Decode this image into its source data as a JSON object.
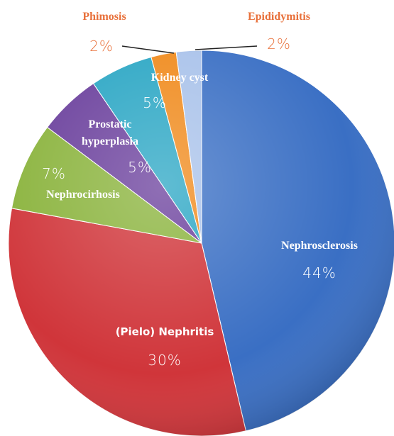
{
  "chart_data": {
    "type": "pie",
    "categories": [
      "Nephrosclerosis",
      "(Pielo) Nephritis",
      "Nephrocirhosis",
      "Prostatic hyperplasia",
      "Kidney cyst",
      "Phimosis",
      "Epididymitis"
    ],
    "values": [
      44,
      30,
      7,
      5,
      5,
      2,
      2
    ],
    "value_labels": [
      "44%",
      "30%",
      "7%",
      "5%",
      "5%",
      "2%",
      "2%"
    ],
    "colors": [
      "#3a6fc4",
      "#d0353a",
      "#8ab33c",
      "#6a3f9c",
      "#2aa6c4",
      "#f08a1c",
      "#a9c2ea"
    ]
  }
}
